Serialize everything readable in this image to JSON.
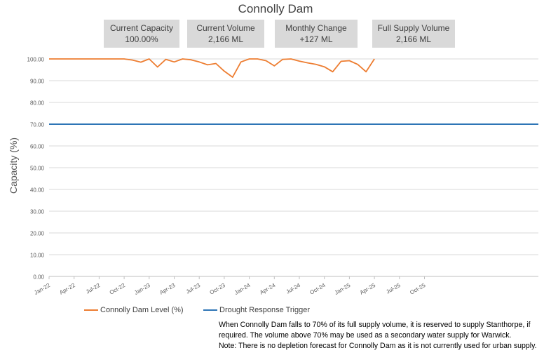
{
  "colors": {
    "dam_level": "#ed7d31",
    "trigger": "#2e75b6",
    "box_bg": "#d9d9d9",
    "grid": "#d9d9d9",
    "text": "#404040"
  },
  "stats": [
    {
      "label": "Current Capacity",
      "value": "100.00%"
    },
    {
      "label": "Current Volume",
      "value": "2,166 ML"
    },
    {
      "label": "Monthly Change",
      "value": "+127 ML"
    },
    {
      "label": "Full Supply Volume",
      "value": "2,166 ML"
    }
  ],
  "legend": {
    "dam_level": "Connolly Dam Level (%)",
    "trigger": "Drought Response Trigger"
  },
  "note": {
    "line1": "When Connolly Dam falls to 70% of its full supply volume, it is reserved to supply Stanthorpe, if",
    "line2": "required. The volume above 70% may be used as a secondary water supply for Warwick.",
    "line3": "Note: There is no depletion forecast for Connolly Dam as it is not currently used for urban supply."
  },
  "chart_data": {
    "type": "line",
    "title": "Connolly Dam",
    "xlabel": "",
    "ylabel": "Capacity (%)",
    "ylim": [
      0,
      100
    ],
    "yticks": [
      "0.00",
      "10.00",
      "20.00",
      "30.00",
      "40.00",
      "50.00",
      "60.00",
      "70.00",
      "80.00",
      "90.00",
      "100.00"
    ],
    "xlim": [
      "2022-01",
      "2025-12"
    ],
    "xticks": [
      "Jan-22",
      "Apr-22",
      "Jul-22",
      "Oct-22",
      "Jan-23",
      "Apr-23",
      "Jul-23",
      "Oct-23",
      "Jan-24",
      "Apr-24",
      "Jul-24",
      "Oct-24",
      "Jan-25",
      "Apr-25",
      "Jul-25",
      "Oct-25"
    ],
    "grid": "horizontal",
    "legend_position": "bottom-left",
    "series": [
      {
        "name": "Connolly Dam Level (%)",
        "x": [
          "2022-01",
          "2022-02",
          "2022-03",
          "2022-04",
          "2022-05",
          "2022-06",
          "2022-07",
          "2022-08",
          "2022-09",
          "2022-10",
          "2022-11",
          "2022-12",
          "2023-01",
          "2023-02",
          "2023-03",
          "2023-04",
          "2023-05",
          "2023-06",
          "2023-07",
          "2023-08",
          "2023-09",
          "2023-10",
          "2023-11",
          "2023-12",
          "2024-01",
          "2024-02",
          "2024-03",
          "2024-04",
          "2024-05",
          "2024-06",
          "2024-07",
          "2024-08",
          "2024-09",
          "2024-10",
          "2024-11",
          "2024-12",
          "2025-01",
          "2025-02",
          "2025-03",
          "2025-04"
        ],
        "values": [
          100,
          100,
          100,
          100,
          100,
          100,
          100,
          100,
          100,
          100,
          99.5,
          98.5,
          100,
          96.3,
          99.8,
          98.6,
          100,
          99.6,
          98.6,
          97.3,
          97.9,
          94.4,
          91.6,
          98.6,
          100,
          100,
          99.2,
          96.8,
          99.8,
          100,
          99,
          98.2,
          97.5,
          96.4,
          94.1,
          98.9,
          99.2,
          97.5,
          94.1,
          100
        ]
      },
      {
        "name": "Drought Response Trigger",
        "x": [
          "2022-01",
          "2025-12"
        ],
        "values": [
          70,
          70
        ]
      }
    ]
  }
}
